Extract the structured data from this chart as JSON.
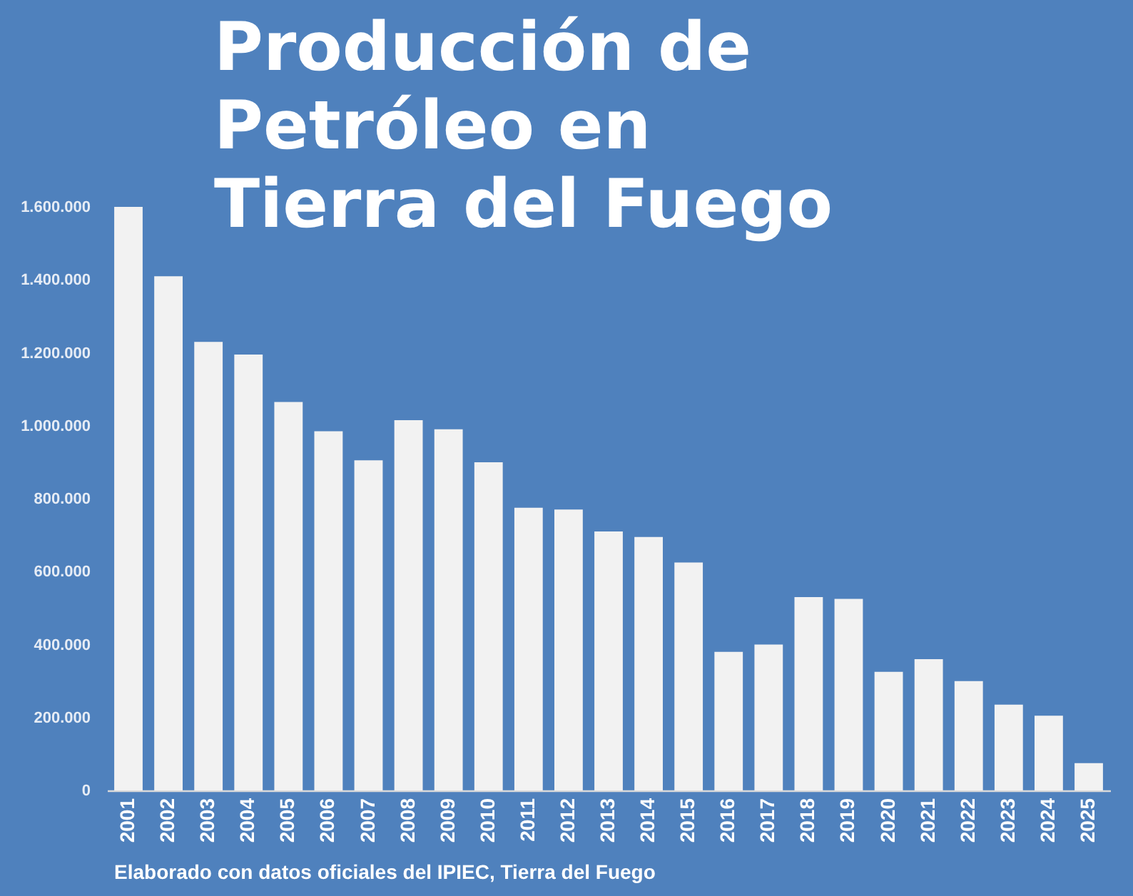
{
  "chart_data": {
    "type": "bar",
    "title": "Producción de Petróleo en Tierra del Fuego",
    "categories": [
      "2001",
      "2002",
      "2003",
      "2004",
      "2005",
      "2006",
      "2007",
      "2008",
      "2009",
      "2010",
      "2011",
      "2012",
      "2013",
      "2014",
      "2015",
      "2016",
      "2017",
      "2018",
      "2019",
      "2020",
      "2021",
      "2022",
      "2023",
      "2024",
      "2025"
    ],
    "values": [
      1600000,
      1410000,
      1230000,
      1195000,
      1065000,
      985000,
      905000,
      1015000,
      990000,
      900000,
      775000,
      770000,
      710000,
      695000,
      625000,
      380000,
      400000,
      530000,
      525000,
      325000,
      360000,
      300000,
      235000,
      205000,
      75000
    ],
    "color": "#f2f2f2",
    "ylim": [
      0,
      1600000
    ],
    "yticks": [
      0,
      {
        "value": 200000,
        "label": "200.000"
      },
      {
        "value": 400000,
        "label": "400.000"
      },
      {
        "value": 600000,
        "label": "600.000"
      },
      {
        "value": 800000,
        "label": "800.000"
      },
      {
        "value": 1000000,
        "label": "1.000.000"
      },
      {
        "value": 1200000,
        "label": "1.200.000"
      },
      {
        "value": 1400000,
        "label": "1.400.000"
      },
      {
        "value": 1600000,
        "label": "1.600.000"
      }
    ],
    "annotations": [
      "Elaborado con datos oficiales del IPIEC, Tierra del Fuego"
    ]
  }
}
